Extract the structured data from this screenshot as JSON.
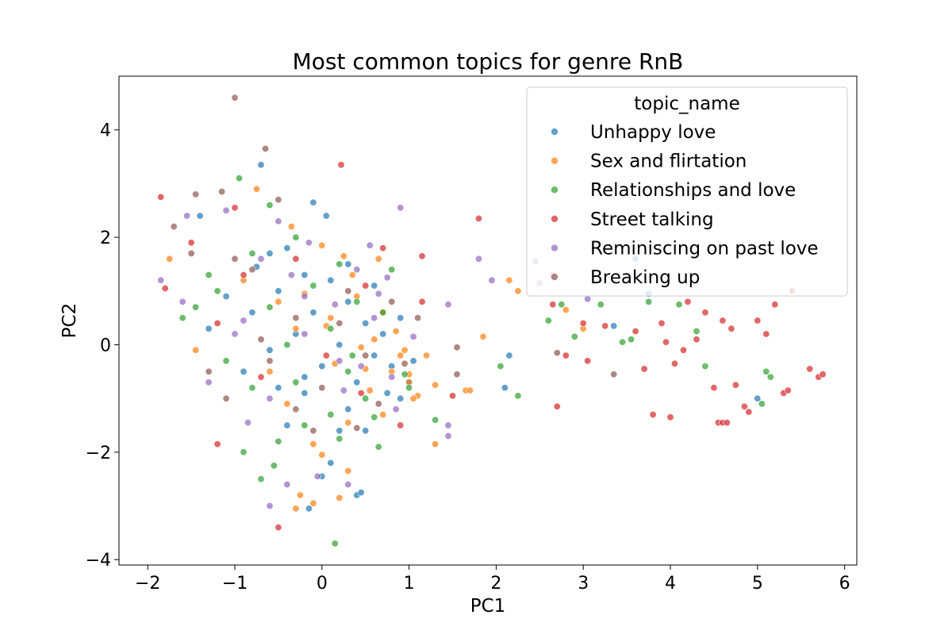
{
  "chart_data": {
    "type": "scatter",
    "title": "Most common topics for genre RnB",
    "xlabel": "PC1",
    "ylabel": "PC2",
    "xlim": [
      -2.33,
      6.14
    ],
    "ylim": [
      -4.1,
      5.0
    ],
    "xticks": [
      -2,
      -1,
      0,
      1,
      2,
      3,
      4,
      5,
      6
    ],
    "yticks": [
      -4,
      -2,
      0,
      2,
      4
    ],
    "xtick_labels": [
      "−2",
      "−1",
      "0",
      "1",
      "2",
      "3",
      "4",
      "5",
      "6"
    ],
    "ytick_labels": [
      "−4",
      "−2",
      "0",
      "2",
      "4"
    ],
    "grid": false,
    "legend": {
      "title": "topic_name",
      "placement": "top-right",
      "entries": [
        "Unhappy love",
        "Sex and flirtation",
        "Relationships and love",
        "Street talking",
        "Reminiscing on past love",
        "Breaking up"
      ]
    },
    "series_colors": [
      "#1f77b4",
      "#ff7f0e",
      "#2ca02c",
      "#d62728",
      "#9467bd",
      "#8c564b"
    ],
    "series": [
      {
        "name": "Unhappy love",
        "points": [
          [
            -0.7,
            3.35
          ],
          [
            -0.1,
            2.65
          ],
          [
            0.05,
            2.4
          ],
          [
            -0.4,
            1.8
          ],
          [
            -0.2,
            1.3
          ],
          [
            0.1,
            1.2
          ],
          [
            -0.5,
            1.0
          ],
          [
            0.3,
            0.8
          ],
          [
            -0.8,
            0.6
          ],
          [
            0.5,
            0.4
          ],
          [
            -0.3,
            0.2
          ],
          [
            0.2,
            0.0
          ],
          [
            -0.6,
            -0.1
          ],
          [
            0.6,
            -0.2
          ],
          [
            0.0,
            -0.4
          ],
          [
            -0.9,
            -0.5
          ],
          [
            0.4,
            -0.7
          ],
          [
            -0.2,
            -0.9
          ],
          [
            0.8,
            -0.4
          ],
          [
            0.9,
            -1.0
          ],
          [
            0.3,
            -1.2
          ],
          [
            -0.4,
            -1.5
          ],
          [
            0.5,
            -1.6
          ],
          [
            0.1,
            -2.2
          ],
          [
            0.4,
            -2.8
          ],
          [
            0.45,
            -2.75
          ],
          [
            -0.15,
            -3.05
          ],
          [
            0.0,
            -2.45
          ],
          [
            -1.1,
            0.9
          ],
          [
            -1.3,
            0.3
          ],
          [
            2.1,
            -0.8
          ],
          [
            2.15,
            -0.2
          ],
          [
            3.35,
            0.35
          ],
          [
            3.6,
            1.6
          ],
          [
            3.75,
            0.95
          ],
          [
            5.0,
            -1.0
          ],
          [
            1.0,
            -0.7
          ],
          [
            0.7,
            0.2
          ],
          [
            -0.1,
            0.6
          ],
          [
            0.3,
            1.5
          ],
          [
            0.6,
            1.1
          ],
          [
            -0.75,
            1.45
          ],
          [
            -1.4,
            2.4
          ],
          [
            -0.6,
            1.7
          ],
          [
            -0.2,
            -0.6
          ],
          [
            0.2,
            -1.6
          ],
          [
            0.75,
            -0.9
          ],
          [
            -0.5,
            -0.8
          ],
          [
            1.05,
            -0.3
          ],
          [
            0.9,
            0.5
          ]
        ]
      },
      {
        "name": "Sex and flirtation",
        "points": [
          [
            -0.75,
            2.9
          ],
          [
            -0.35,
            2.2
          ],
          [
            0.0,
            1.85
          ],
          [
            0.25,
            1.65
          ],
          [
            -0.9,
            1.2
          ],
          [
            0.4,
            0.9
          ],
          [
            0.7,
            0.6
          ],
          [
            -0.3,
            0.3
          ],
          [
            0.6,
            0.1
          ],
          [
            0.9,
            -0.2
          ],
          [
            0.8,
            -0.5
          ],
          [
            1.0,
            -0.7
          ],
          [
            1.1,
            -0.95
          ],
          [
            0.7,
            -1.3
          ],
          [
            0.3,
            -1.45
          ],
          [
            -0.4,
            -1.1
          ],
          [
            -0.1,
            -1.85
          ],
          [
            0.0,
            -2.05
          ],
          [
            0.3,
            -2.35
          ],
          [
            0.2,
            -2.85
          ],
          [
            -0.25,
            -2.8
          ],
          [
            -0.3,
            -3.05
          ],
          [
            -0.1,
            -2.95
          ],
          [
            1.3,
            -1.85
          ],
          [
            1.3,
            -0.75
          ],
          [
            1.65,
            -0.85
          ],
          [
            1.7,
            -0.85
          ],
          [
            1.85,
            0.15
          ],
          [
            2.15,
            1.2
          ],
          [
            2.25,
            1.0
          ],
          [
            2.8,
            0.65
          ],
          [
            3.0,
            0.3
          ],
          [
            -1.75,
            1.6
          ],
          [
            -1.45,
            -0.1
          ],
          [
            -0.5,
            0.8
          ],
          [
            0.1,
            0.5
          ],
          [
            0.45,
            -0.05
          ],
          [
            0.85,
            0.25
          ],
          [
            1.0,
            -0.55
          ],
          [
            0.55,
            -0.85
          ],
          [
            0.15,
            -0.35
          ],
          [
            -0.2,
            0.95
          ],
          [
            0.35,
            1.3
          ],
          [
            0.65,
            1.6
          ],
          [
            1.05,
            -1.0
          ],
          [
            0.95,
            -0.1
          ],
          [
            0.5,
            -0.45
          ],
          [
            -0.6,
            -0.5
          ],
          [
            1.2,
            -0.2
          ],
          [
            0.05,
            0.35
          ]
        ]
      },
      {
        "name": "Relationships and love",
        "points": [
          [
            -0.95,
            3.1
          ],
          [
            -0.6,
            2.6
          ],
          [
            -0.3,
            2.0
          ],
          [
            0.2,
            1.5
          ],
          [
            -1.2,
            1.0
          ],
          [
            -0.6,
            0.7
          ],
          [
            0.1,
            0.3
          ],
          [
            -0.4,
            0.0
          ],
          [
            0.3,
            -0.5
          ],
          [
            -0.8,
            -0.8
          ],
          [
            0.5,
            -1.0
          ],
          [
            -0.2,
            -1.5
          ],
          [
            -0.5,
            -1.8
          ],
          [
            -0.9,
            -2.0
          ],
          [
            -0.7,
            -2.5
          ],
          [
            -0.55,
            -2.25
          ],
          [
            0.15,
            -3.7
          ],
          [
            0.2,
            -1.75
          ],
          [
            0.65,
            -1.9
          ],
          [
            1.3,
            -1.4
          ],
          [
            2.05,
            -0.4
          ],
          [
            2.25,
            -0.95
          ],
          [
            2.6,
            0.45
          ],
          [
            2.75,
            0.75
          ],
          [
            2.9,
            0.15
          ],
          [
            3.2,
            0.75
          ],
          [
            3.45,
            0.05
          ],
          [
            3.55,
            0.1
          ],
          [
            3.75,
            0.8
          ],
          [
            4.1,
            0.75
          ],
          [
            4.3,
            0.25
          ],
          [
            4.4,
            -0.4
          ],
          [
            5.1,
            -0.5
          ],
          [
            5.15,
            -0.6
          ],
          [
            5.05,
            -1.1
          ],
          [
            -1.6,
            0.5
          ],
          [
            -1.45,
            0.7
          ],
          [
            -1.1,
            -0.3
          ],
          [
            0.7,
            0.6
          ],
          [
            0.8,
            1.4
          ],
          [
            0.4,
            0.8
          ],
          [
            -0.1,
            1.1
          ],
          [
            0.95,
            -0.55
          ],
          [
            0.35,
            -0.2
          ],
          [
            -0.3,
            -0.7
          ],
          [
            0.1,
            -1.3
          ],
          [
            -1.3,
            1.3
          ],
          [
            -0.8,
            1.7
          ],
          [
            1.0,
            -0.8
          ],
          [
            0.6,
            -1.35
          ]
        ]
      },
      {
        "name": "Street talking",
        "points": [
          [
            0.22,
            3.35
          ],
          [
            -1.85,
            2.75
          ],
          [
            -1.0,
            2.55
          ],
          [
            -0.5,
            -3.4
          ],
          [
            -1.2,
            -1.85
          ],
          [
            -1.8,
            1.05
          ],
          [
            -0.9,
            1.3
          ],
          [
            0.7,
            1.8
          ],
          [
            1.15,
            1.65
          ],
          [
            0.45,
            -0.9
          ],
          [
            1.8,
            2.35
          ],
          [
            1.5,
            -0.95
          ],
          [
            2.65,
            0.75
          ],
          [
            2.8,
            -0.2
          ],
          [
            3.0,
            0.4
          ],
          [
            3.05,
            -0.3
          ],
          [
            3.25,
            0.35
          ],
          [
            3.6,
            0.25
          ],
          [
            3.7,
            -0.45
          ],
          [
            3.8,
            -1.3
          ],
          [
            3.9,
            0.4
          ],
          [
            3.95,
            0.05
          ],
          [
            4.0,
            -1.35
          ],
          [
            4.05,
            -0.35
          ],
          [
            4.15,
            -0.1
          ],
          [
            4.3,
            0.1
          ],
          [
            4.4,
            0.6
          ],
          [
            4.5,
            -0.8
          ],
          [
            4.55,
            -1.45
          ],
          [
            4.6,
            -1.45
          ],
          [
            4.65,
            -1.45
          ],
          [
            4.7,
            0.3
          ],
          [
            4.75,
            -0.75
          ],
          [
            4.85,
            -1.15
          ],
          [
            4.9,
            -1.25
          ],
          [
            5.0,
            0.45
          ],
          [
            5.1,
            0.2
          ],
          [
            5.2,
            0.75
          ],
          [
            5.3,
            -0.9
          ],
          [
            5.35,
            -0.85
          ],
          [
            5.6,
            -0.45
          ],
          [
            5.7,
            -0.6
          ],
          [
            5.75,
            -0.55
          ],
          [
            5.4,
            1.0
          ],
          [
            -1.2,
            0.4
          ],
          [
            -0.3,
            1.6
          ],
          [
            0.5,
            1.1
          ],
          [
            -0.7,
            -0.6
          ],
          [
            0.9,
            -1.5
          ],
          [
            2.7,
            -1.15
          ],
          [
            4.2,
            0.8
          ],
          [
            4.6,
            0.45
          ],
          [
            1.15,
            0.8
          ],
          [
            -1.5,
            1.9
          ],
          [
            0.05,
            -0.2
          ]
        ]
      },
      {
        "name": "Reminiscing on past love",
        "points": [
          [
            -1.1,
            2.5
          ],
          [
            -0.5,
            2.3
          ],
          [
            0.9,
            2.55
          ],
          [
            -0.7,
            1.6
          ],
          [
            0.4,
            1.4
          ],
          [
            -0.2,
            0.9
          ],
          [
            0.6,
            0.5
          ],
          [
            -1.0,
            0.2
          ],
          [
            0.2,
            -0.3
          ],
          [
            -0.6,
            -1.0
          ],
          [
            0.8,
            -0.6
          ],
          [
            -0.4,
            -2.6
          ],
          [
            -0.6,
            -3.0
          ],
          [
            -0.05,
            -2.45
          ],
          [
            0.3,
            -2.6
          ],
          [
            1.45,
            -1.5
          ],
          [
            1.45,
            -1.7
          ],
          [
            1.45,
            0.75
          ],
          [
            1.8,
            1.6
          ],
          [
            1.95,
            1.2
          ],
          [
            2.45,
            1.55
          ],
          [
            2.5,
            1.15
          ],
          [
            3.05,
            0.85
          ],
          [
            -1.85,
            1.2
          ],
          [
            -1.6,
            0.8
          ],
          [
            -1.3,
            -0.7
          ],
          [
            -0.2,
            0.2
          ],
          [
            0.45,
            -0.4
          ],
          [
            0.75,
            1.25
          ],
          [
            -0.9,
            0.45
          ],
          [
            0.15,
            0.75
          ],
          [
            0.55,
            1.85
          ],
          [
            -0.35,
            1.3
          ],
          [
            1.05,
            0.15
          ],
          [
            0.85,
            -1.2
          ],
          [
            -0.85,
            -1.45
          ],
          [
            0.25,
            -0.85
          ],
          [
            -1.55,
            2.4
          ],
          [
            -0.15,
            1.9
          ],
          [
            0.65,
            0.95
          ]
        ]
      },
      {
        "name": "Breaking up",
        "points": [
          [
            -1.0,
            4.6
          ],
          [
            -0.65,
            3.65
          ],
          [
            -1.45,
            2.8
          ],
          [
            -1.15,
            2.85
          ],
          [
            -0.5,
            2.7
          ],
          [
            -1.7,
            2.2
          ],
          [
            -0.8,
            1.4
          ],
          [
            0.3,
            1.0
          ],
          [
            -0.3,
            0.5
          ],
          [
            0.5,
            -0.2
          ],
          [
            -0.6,
            -0.3
          ],
          [
            -1.3,
            -0.5
          ],
          [
            0.0,
            -0.8
          ],
          [
            0.4,
            -1.55
          ],
          [
            -0.3,
            -1.2
          ],
          [
            1.55,
            -0.55
          ],
          [
            1.55,
            -0.05
          ],
          [
            2.7,
            -0.15
          ],
          [
            3.35,
            -0.55
          ],
          [
            2.65,
            1.3
          ],
          [
            -1.5,
            1.7
          ],
          [
            -1.0,
            1.6
          ],
          [
            0.8,
            0.8
          ],
          [
            -0.7,
            0.1
          ],
          [
            0.2,
            0.4
          ],
          [
            0.95,
            -0.35
          ],
          [
            -1.1,
            -1.0
          ],
          [
            0.65,
            -1.1
          ],
          [
            -0.1,
            -1.6
          ],
          [
            1.1,
            0.5
          ]
        ]
      }
    ]
  }
}
